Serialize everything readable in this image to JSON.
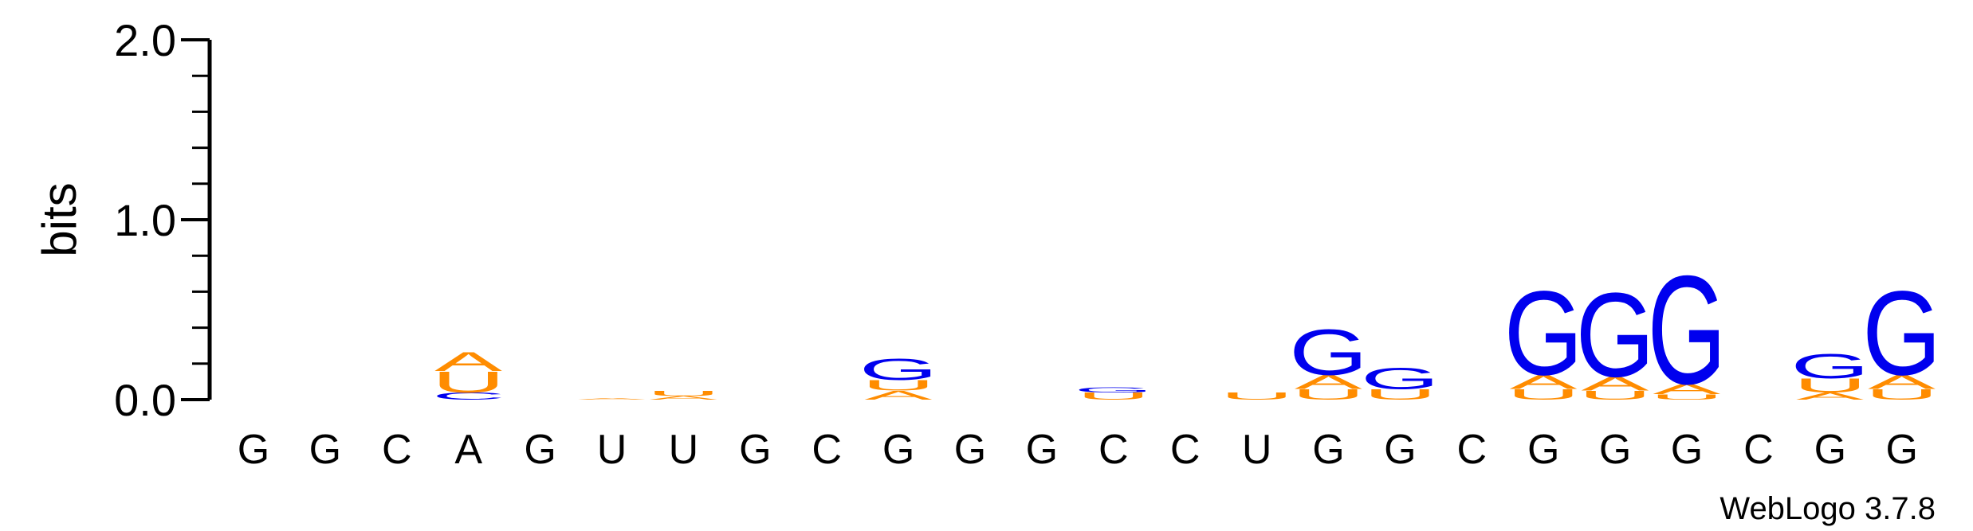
{
  "chart_data": {
    "type": "sequence-logo",
    "ylabel": "bits",
    "ylim": [
      0,
      2.0
    ],
    "yticks": [
      "0.0",
      "1.0",
      "2.0"
    ],
    "credit": "WebLogo 3.7.8",
    "colors": {
      "G": "#0000ee",
      "A": "#ff8c00",
      "U": "#ff8c00",
      "C": "#0000ee"
    },
    "positions": [
      {
        "label": "G",
        "stack": []
      },
      {
        "label": "G",
        "stack": []
      },
      {
        "label": "C",
        "stack": []
      },
      {
        "label": "A",
        "stack": [
          {
            "letter": "C",
            "bits": 0.04
          },
          {
            "letter": "U",
            "bits": 0.12
          },
          {
            "letter": "A",
            "bits": 0.11
          }
        ]
      },
      {
        "label": "G",
        "stack": []
      },
      {
        "label": "U",
        "stack": [
          {
            "letter": "A",
            "bits": 0.01
          }
        ]
      },
      {
        "label": "U",
        "stack": [
          {
            "letter": "A",
            "bits": 0.02
          },
          {
            "letter": "U",
            "bits": 0.03
          }
        ]
      },
      {
        "label": "G",
        "stack": []
      },
      {
        "label": "C",
        "stack": []
      },
      {
        "label": "G",
        "stack": [
          {
            "letter": "A",
            "bits": 0.05
          },
          {
            "letter": "U",
            "bits": 0.06
          },
          {
            "letter": "G",
            "bits": 0.12
          }
        ]
      },
      {
        "label": "G",
        "stack": []
      },
      {
        "label": "G",
        "stack": []
      },
      {
        "label": "C",
        "stack": [
          {
            "letter": "U",
            "bits": 0.04
          },
          {
            "letter": "G",
            "bits": 0.03
          }
        ]
      },
      {
        "label": "C",
        "stack": []
      },
      {
        "label": "U",
        "stack": [
          {
            "letter": "U",
            "bits": 0.04
          }
        ]
      },
      {
        "label": "G",
        "stack": [
          {
            "letter": "U",
            "bits": 0.06
          },
          {
            "letter": "A",
            "bits": 0.08
          },
          {
            "letter": "G",
            "bits": 0.26
          }
        ]
      },
      {
        "label": "G",
        "stack": [
          {
            "letter": "U",
            "bits": 0.06
          },
          {
            "letter": "G",
            "bits": 0.12
          }
        ]
      },
      {
        "label": "C",
        "stack": []
      },
      {
        "label": "G",
        "stack": [
          {
            "letter": "U",
            "bits": 0.06
          },
          {
            "letter": "A",
            "bits": 0.08
          },
          {
            "letter": "G",
            "bits": 0.48
          }
        ]
      },
      {
        "label": "G",
        "stack": [
          {
            "letter": "U",
            "bits": 0.05
          },
          {
            "letter": "A",
            "bits": 0.08
          },
          {
            "letter": "G",
            "bits": 0.48
          }
        ]
      },
      {
        "label": "G",
        "stack": [
          {
            "letter": "U",
            "bits": 0.03
          },
          {
            "letter": "A",
            "bits": 0.06
          },
          {
            "letter": "G",
            "bits": 0.62
          }
        ]
      },
      {
        "label": "C",
        "stack": []
      },
      {
        "label": "G",
        "stack": [
          {
            "letter": "A",
            "bits": 0.04
          },
          {
            "letter": "U",
            "bits": 0.08
          },
          {
            "letter": "G",
            "bits": 0.14
          }
        ]
      },
      {
        "label": "G",
        "stack": [
          {
            "letter": "U",
            "bits": 0.06
          },
          {
            "letter": "A",
            "bits": 0.08
          },
          {
            "letter": "G",
            "bits": 0.48
          }
        ]
      }
    ]
  }
}
